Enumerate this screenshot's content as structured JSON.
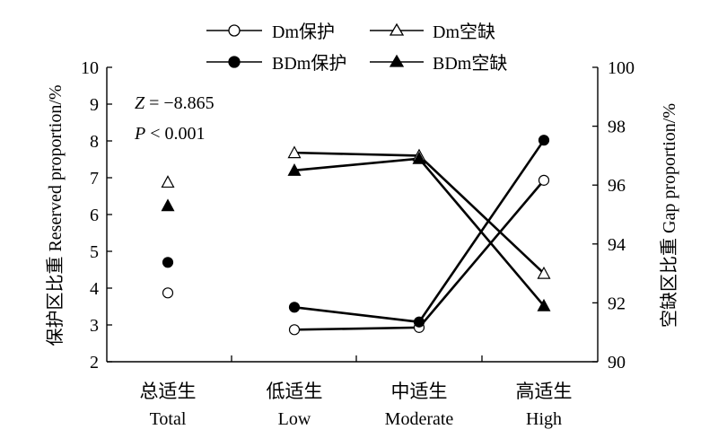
{
  "chart_data": {
    "type": "line",
    "categories": [
      {
        "zh": "总适生",
        "en": "Total"
      },
      {
        "zh": "低适生",
        "en": "Low"
      },
      {
        "zh": "中适生",
        "en": "Moderate"
      },
      {
        "zh": "高适生",
        "en": "High"
      }
    ],
    "ylabel_left": "保护区比重 Reserved proportion/%",
    "ylabel_right": "空缺区比重 Gap proportion/%",
    "ylim_left": [
      2,
      10
    ],
    "yticks_left": [
      2,
      3,
      4,
      5,
      6,
      7,
      8,
      9,
      10
    ],
    "ylim_right": [
      90,
      100
    ],
    "yticks_right": [
      90,
      92,
      94,
      96,
      98,
      100
    ],
    "grid": false,
    "legend_position": "top-center",
    "annotation": {
      "z_label": "Z",
      "z_value": " = −8.865",
      "p_label": "P",
      "p_value": " < 0.001"
    },
    "series": [
      {
        "name": "Dm保护",
        "axis": "left",
        "marker": "circle-open",
        "values": [
          3.87,
          2.87,
          2.93,
          6.93
        ],
        "connect_from": 1
      },
      {
        "name": "Dm空缺",
        "axis": "right",
        "marker": "triangle-open",
        "values": [
          96.1,
          97.1,
          97.0,
          93.0
        ],
        "connect_from": 1
      },
      {
        "name": "BDm保护",
        "axis": "left",
        "marker": "circle-filled",
        "values": [
          4.7,
          3.48,
          3.08,
          8.02
        ],
        "connect_from": 1
      },
      {
        "name": "BDm空缺",
        "axis": "right",
        "marker": "triangle-filled",
        "values": [
          95.3,
          96.5,
          96.9,
          91.9
        ],
        "connect_from": 1
      }
    ]
  }
}
